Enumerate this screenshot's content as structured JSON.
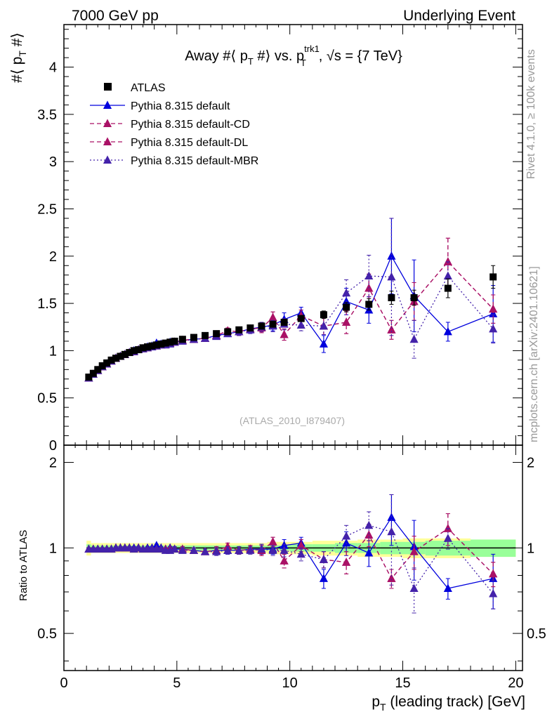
{
  "header": {
    "left": "7000 GeV pp",
    "right": "Underlying Event"
  },
  "side_labels": {
    "rivet": "Rivet 4.1.0, ≥ 100k events",
    "mcplots": "mcplots.cern.ch [arXiv:2401.10621]"
  },
  "colors": {
    "atlas": "#000000",
    "default": "#0000dd",
    "cd": "#aa1166",
    "dl": "#aa1166",
    "mbr": "#4422aa",
    "band_inner": "#99ff99",
    "band_outer": "#ffff99"
  },
  "chart_data": [
    {
      "type": "scatter",
      "panel": "main",
      "title": "Away #⟨ p_T #⟩ vs. p_T^{trk1}, √s = {7 TeV}",
      "title_parts": {
        "prefix": "Away #⟨ p",
        "sub1": "T",
        "mid": " #⟩ vs. p",
        "sup": "trk1",
        "sub2": "T",
        "suffix": ", √s = {7 TeV}"
      },
      "ylabel": "#⟨ p_T #⟩",
      "ylabel_parts": {
        "prefix": "#⟨ p",
        "sub": "T",
        "suffix": " #⟩"
      },
      "watermark": "(ATLAS_2010_I879407)",
      "xlim": [
        0,
        20.3
      ],
      "ylim": [
        0,
        4.45
      ],
      "yticks": [
        0,
        0.5,
        1,
        1.5,
        2,
        2.5,
        3,
        3.5,
        4
      ],
      "ytick_labels": [
        "0",
        "0.5",
        "1",
        "1.5",
        "2",
        "2.5",
        "3",
        "3.5",
        "4"
      ],
      "x": [
        1.1,
        1.3,
        1.5,
        1.7,
        1.9,
        2.1,
        2.3,
        2.5,
        2.7,
        2.9,
        3.1,
        3.3,
        3.5,
        3.7,
        3.9,
        4.1,
        4.3,
        4.5,
        4.7,
        4.9,
        5.25,
        5.75,
        6.25,
        6.75,
        7.25,
        7.75,
        8.25,
        8.75,
        9.25,
        9.75,
        10.5,
        11.5,
        12.5,
        13.5,
        14.5,
        15.5,
        17.0,
        19.0
      ],
      "series": [
        {
          "name": "ATLAS",
          "style": "square",
          "color_key": "atlas",
          "values": [
            0.72,
            0.76,
            0.8,
            0.84,
            0.87,
            0.9,
            0.92,
            0.94,
            0.96,
            0.98,
            1.0,
            1.01,
            1.03,
            1.04,
            1.05,
            1.06,
            1.07,
            1.08,
            1.09,
            1.1,
            1.12,
            1.14,
            1.16,
            1.18,
            1.2,
            1.22,
            1.24,
            1.26,
            1.28,
            1.3,
            1.34,
            1.38,
            1.46,
            1.49,
            1.56,
            1.56,
            1.66,
            1.78
          ],
          "errors": [
            0.01,
            0.01,
            0.01,
            0.01,
            0.01,
            0.01,
            0.01,
            0.01,
            0.01,
            0.01,
            0.01,
            0.01,
            0.01,
            0.01,
            0.01,
            0.01,
            0.01,
            0.01,
            0.01,
            0.01,
            0.01,
            0.01,
            0.01,
            0.01,
            0.01,
            0.02,
            0.02,
            0.02,
            0.02,
            0.03,
            0.03,
            0.04,
            0.05,
            0.06,
            0.07,
            0.08,
            0.1,
            0.12
          ]
        },
        {
          "name": "Pythia 8.315 default",
          "style": "solid",
          "color_key": "default",
          "values": [
            0.71,
            0.75,
            0.79,
            0.83,
            0.86,
            0.89,
            0.92,
            0.94,
            0.96,
            0.98,
            1.0,
            1.01,
            1.02,
            1.04,
            1.05,
            1.08,
            1.07,
            1.07,
            1.09,
            1.09,
            1.11,
            1.12,
            1.13,
            1.16,
            1.18,
            1.2,
            1.23,
            1.25,
            1.27,
            1.33,
            1.4,
            1.07,
            1.52,
            1.43,
            2.0,
            1.58,
            1.2,
            1.39
          ],
          "errors": [
            0.01,
            0.01,
            0.01,
            0.01,
            0.01,
            0.01,
            0.01,
            0.01,
            0.01,
            0.01,
            0.01,
            0.01,
            0.01,
            0.01,
            0.01,
            0.01,
            0.01,
            0.01,
            0.01,
            0.02,
            0.02,
            0.02,
            0.02,
            0.03,
            0.03,
            0.04,
            0.04,
            0.05,
            0.06,
            0.07,
            0.06,
            0.09,
            0.14,
            0.14,
            0.4,
            0.38,
            0.1,
            0.3
          ]
        },
        {
          "name": "Pythia 8.315 default-CD",
          "style": "dashed",
          "color_key": "cd",
          "values": [
            0.71,
            0.75,
            0.79,
            0.83,
            0.86,
            0.89,
            0.92,
            0.94,
            0.96,
            0.98,
            0.99,
            1.01,
            1.02,
            1.03,
            1.04,
            1.05,
            1.06,
            1.07,
            1.08,
            1.09,
            1.11,
            1.12,
            1.13,
            1.16,
            1.21,
            1.2,
            1.23,
            1.24,
            1.35,
            1.17,
            1.37,
            1.26,
            1.3,
            1.66,
            1.22,
            1.52,
            1.94,
            1.44
          ],
          "errors": [
            0.01,
            0.01,
            0.01,
            0.01,
            0.01,
            0.01,
            0.01,
            0.01,
            0.01,
            0.01,
            0.01,
            0.01,
            0.01,
            0.01,
            0.01,
            0.01,
            0.01,
            0.01,
            0.01,
            0.02,
            0.02,
            0.02,
            0.02,
            0.03,
            0.03,
            0.04,
            0.04,
            0.05,
            0.06,
            0.06,
            0.06,
            0.09,
            0.12,
            0.15,
            0.1,
            0.2,
            0.25,
            0.15
          ]
        },
        {
          "name": "Pythia 8.315 default-DL",
          "style": "dashed",
          "color_key": "dl",
          "values": [
            0.71,
            0.75,
            0.79,
            0.83,
            0.86,
            0.89,
            0.92,
            0.94,
            0.96,
            0.98,
            0.99,
            1.01,
            1.02,
            1.03,
            1.04,
            1.05,
            1.06,
            1.07,
            1.08,
            1.09,
            1.11,
            1.12,
            1.13,
            1.16,
            1.21,
            1.2,
            1.23,
            1.24,
            1.35,
            1.17,
            1.37,
            1.26,
            1.3,
            1.66,
            1.22,
            1.52,
            1.94,
            1.44
          ],
          "errors": [
            0.01,
            0.01,
            0.01,
            0.01,
            0.01,
            0.01,
            0.01,
            0.01,
            0.01,
            0.01,
            0.01,
            0.01,
            0.01,
            0.01,
            0.01,
            0.01,
            0.01,
            0.01,
            0.01,
            0.02,
            0.02,
            0.02,
            0.02,
            0.03,
            0.03,
            0.04,
            0.04,
            0.05,
            0.06,
            0.06,
            0.06,
            0.09,
            0.12,
            0.15,
            0.1,
            0.2,
            0.25,
            0.15
          ]
        },
        {
          "name": "Pythia 8.315 default-MBR",
          "style": "dotted",
          "color_key": "mbr",
          "values": [
            0.71,
            0.75,
            0.79,
            0.83,
            0.86,
            0.89,
            0.92,
            0.94,
            0.96,
            0.98,
            0.99,
            1.01,
            1.02,
            1.03,
            1.04,
            1.05,
            1.06,
            1.06,
            1.07,
            1.09,
            1.1,
            1.12,
            1.13,
            1.15,
            1.18,
            1.2,
            1.22,
            1.25,
            1.26,
            1.28,
            1.27,
            1.26,
            1.61,
            1.79,
            1.78,
            1.12,
            1.79,
            1.23
          ],
          "errors": [
            0.01,
            0.01,
            0.01,
            0.01,
            0.01,
            0.01,
            0.01,
            0.01,
            0.01,
            0.01,
            0.01,
            0.01,
            0.01,
            0.01,
            0.01,
            0.01,
            0.01,
            0.01,
            0.01,
            0.02,
            0.02,
            0.02,
            0.02,
            0.03,
            0.03,
            0.04,
            0.04,
            0.05,
            0.06,
            0.06,
            0.06,
            0.09,
            0.14,
            0.22,
            0.62,
            0.2,
            0.15,
            0.15
          ]
        }
      ]
    },
    {
      "type": "scatter",
      "panel": "ratio",
      "ylabel": "Ratio to ATLAS",
      "xlabel": "p_T (leading track) [GeV]",
      "xlabel_parts": {
        "prefix": "p",
        "sub": "T",
        "suffix": " (leading track) [GeV]"
      },
      "xlim": [
        0,
        20.3
      ],
      "ylim": [
        0.37,
        2.3
      ],
      "xticks": [
        0,
        5,
        10,
        15,
        20
      ],
      "xtick_labels": [
        "0",
        "5",
        "10",
        "15",
        "20"
      ],
      "yticks": [
        0.5,
        1,
        2
      ],
      "ytick_labels": [
        "0.5",
        "1",
        "2"
      ],
      "band": {
        "x_edges": [
          1.0,
          1.2,
          2.0,
          3.0,
          4.0,
          5.0,
          7.0,
          9.0,
          10.0,
          11.0,
          12.0,
          13.0,
          14.0,
          15.0,
          16.0,
          18.0,
          20.0
        ],
        "inner": [
          0.03,
          0.02,
          0.02,
          0.02,
          0.02,
          0.02,
          0.02,
          0.02,
          0.03,
          0.03,
          0.04,
          0.04,
          0.05,
          0.05,
          0.06,
          0.07
        ],
        "outer": [
          0.06,
          0.04,
          0.04,
          0.04,
          0.04,
          0.04,
          0.04,
          0.05,
          0.05,
          0.06,
          0.06,
          0.07,
          0.07,
          0.08,
          0.08,
          0.07
        ]
      },
      "series": [
        {
          "name": "Pythia 8.315 default",
          "style": "solid",
          "color_key": "default",
          "values": [
            0.99,
            0.99,
            0.99,
            0.99,
            0.99,
            0.99,
            1.0,
            1.0,
            1.0,
            1.0,
            1.0,
            1.0,
            0.99,
            1.0,
            1.0,
            1.02,
            1.0,
            0.99,
            1.0,
            0.99,
            0.99,
            0.98,
            0.97,
            0.98,
            0.98,
            0.98,
            0.99,
            0.99,
            0.99,
            1.02,
            1.04,
            0.78,
            1.04,
            0.96,
            1.28,
            1.01,
            0.72,
            0.78
          ],
          "errors": [
            0.01,
            0.01,
            0.01,
            0.01,
            0.01,
            0.01,
            0.01,
            0.01,
            0.01,
            0.01,
            0.01,
            0.01,
            0.01,
            0.01,
            0.01,
            0.01,
            0.01,
            0.01,
            0.01,
            0.02,
            0.02,
            0.02,
            0.02,
            0.03,
            0.03,
            0.03,
            0.03,
            0.04,
            0.04,
            0.05,
            0.05,
            0.06,
            0.1,
            0.1,
            0.26,
            0.24,
            0.06,
            0.17
          ]
        },
        {
          "name": "Pythia 8.315 default-CD",
          "style": "dashed",
          "color_key": "cd",
          "values": [
            0.99,
            0.99,
            0.99,
            0.99,
            0.99,
            0.99,
            1.0,
            1.0,
            1.0,
            1.0,
            0.99,
            1.0,
            0.99,
            0.99,
            0.99,
            0.99,
            0.99,
            0.99,
            0.99,
            0.99,
            0.99,
            0.98,
            0.97,
            0.98,
            1.01,
            0.98,
            0.99,
            0.98,
            1.05,
            0.9,
            1.02,
            0.91,
            0.89,
            1.11,
            0.78,
            0.97,
            1.17,
            0.81
          ],
          "errors": [
            0.01,
            0.01,
            0.01,
            0.01,
            0.01,
            0.01,
            0.01,
            0.01,
            0.01,
            0.01,
            0.01,
            0.01,
            0.01,
            0.01,
            0.01,
            0.01,
            0.01,
            0.01,
            0.01,
            0.02,
            0.02,
            0.02,
            0.02,
            0.03,
            0.03,
            0.03,
            0.03,
            0.04,
            0.04,
            0.05,
            0.05,
            0.06,
            0.08,
            0.1,
            0.06,
            0.13,
            0.15,
            0.08
          ]
        },
        {
          "name": "Pythia 8.315 default-DL",
          "style": "dashed",
          "color_key": "dl",
          "values": [
            0.99,
            0.99,
            0.99,
            0.99,
            0.99,
            0.99,
            1.0,
            1.0,
            1.0,
            1.0,
            0.99,
            1.0,
            0.99,
            0.99,
            0.99,
            0.99,
            0.99,
            0.99,
            0.99,
            0.99,
            0.99,
            0.98,
            0.97,
            0.98,
            1.01,
            0.98,
            0.99,
            0.98,
            1.05,
            0.9,
            1.02,
            0.91,
            0.89,
            1.11,
            0.78,
            0.97,
            1.17,
            0.81
          ],
          "errors": [
            0.01,
            0.01,
            0.01,
            0.01,
            0.01,
            0.01,
            0.01,
            0.01,
            0.01,
            0.01,
            0.01,
            0.01,
            0.01,
            0.01,
            0.01,
            0.01,
            0.01,
            0.01,
            0.01,
            0.02,
            0.02,
            0.02,
            0.02,
            0.03,
            0.03,
            0.03,
            0.03,
            0.04,
            0.04,
            0.05,
            0.05,
            0.06,
            0.08,
            0.1,
            0.06,
            0.13,
            0.15,
            0.08
          ]
        },
        {
          "name": "Pythia 8.315 default-MBR",
          "style": "dotted",
          "color_key": "mbr",
          "values": [
            0.99,
            0.99,
            0.99,
            0.99,
            0.99,
            0.99,
            1.0,
            1.0,
            1.0,
            1.0,
            0.99,
            1.0,
            0.99,
            0.99,
            0.99,
            0.99,
            0.99,
            0.98,
            0.98,
            0.99,
            0.98,
            0.98,
            0.97,
            0.97,
            0.98,
            0.98,
            0.98,
            0.99,
            0.98,
            0.98,
            0.95,
            0.91,
            1.1,
            1.2,
            1.14,
            0.72,
            1.08,
            0.69
          ],
          "errors": [
            0.01,
            0.01,
            0.01,
            0.01,
            0.01,
            0.01,
            0.01,
            0.01,
            0.01,
            0.01,
            0.01,
            0.01,
            0.01,
            0.01,
            0.01,
            0.01,
            0.01,
            0.01,
            0.01,
            0.02,
            0.02,
            0.02,
            0.02,
            0.03,
            0.03,
            0.03,
            0.03,
            0.04,
            0.04,
            0.05,
            0.05,
            0.06,
            0.1,
            0.14,
            0.4,
            0.13,
            0.09,
            0.08
          ]
        }
      ]
    }
  ]
}
